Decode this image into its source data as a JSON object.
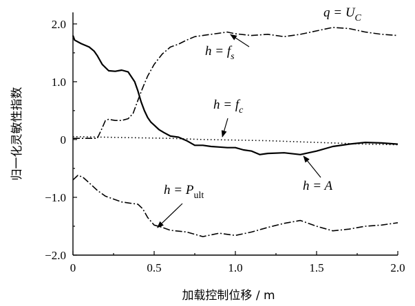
{
  "chart_data": {
    "type": "line",
    "title": "",
    "xlabel": "加载控制位移 / m",
    "ylabel": "归一化灵敏性指数",
    "xlim": [
      0,
      2.0
    ],
    "ylim": [
      -2.0,
      2.2
    ],
    "xticks": [
      "0",
      "0.5",
      "1.0",
      "1.5",
      "2.0"
    ],
    "yticks": [
      "2.0",
      "1.0",
      "0",
      "−1.0",
      "−2.0"
    ],
    "grid": false,
    "legend": "none",
    "series": [
      {
        "id": "A",
        "style": "solid",
        "x": [
          0.0,
          0.01,
          0.05,
          0.1,
          0.13,
          0.15,
          0.18,
          0.22,
          0.26,
          0.3,
          0.34,
          0.38,
          0.4,
          0.42,
          0.44,
          0.46,
          0.48,
          0.5,
          0.53,
          0.56,
          0.6,
          0.65,
          0.7,
          0.75,
          0.8,
          0.85,
          0.9,
          0.95,
          1.0,
          1.05,
          1.1,
          1.15,
          1.2,
          1.3,
          1.4,
          1.5,
          1.6,
          1.7,
          1.8,
          1.9,
          2.0
        ],
        "y": [
          1.8,
          1.72,
          1.66,
          1.6,
          1.53,
          1.45,
          1.3,
          1.19,
          1.18,
          1.2,
          1.17,
          1.0,
          0.84,
          0.65,
          0.5,
          0.38,
          0.3,
          0.25,
          0.17,
          0.12,
          0.06,
          0.04,
          -0.02,
          -0.1,
          -0.1,
          -0.12,
          -0.13,
          -0.14,
          -0.14,
          -0.18,
          -0.2,
          -0.26,
          -0.24,
          -0.23,
          -0.26,
          -0.2,
          -0.12,
          -0.08,
          -0.05,
          -0.06,
          -0.08
        ]
      },
      {
        "id": "fs",
        "style": "dash-dot",
        "x": [
          0.0,
          0.1,
          0.15,
          0.18,
          0.2,
          0.22,
          0.26,
          0.3,
          0.34,
          0.37,
          0.4,
          0.43,
          0.46,
          0.5,
          0.55,
          0.6,
          0.65,
          0.7,
          0.75,
          0.8,
          0.85,
          0.9,
          0.95,
          1.0,
          1.1,
          1.2,
          1.3,
          1.4,
          1.5,
          1.6,
          1.7,
          1.8,
          1.9,
          2.0
        ],
        "y": [
          0.02,
          0.02,
          0.02,
          0.2,
          0.33,
          0.35,
          0.33,
          0.33,
          0.36,
          0.45,
          0.68,
          0.9,
          1.1,
          1.3,
          1.48,
          1.6,
          1.65,
          1.72,
          1.78,
          1.8,
          1.82,
          1.84,
          1.86,
          1.83,
          1.8,
          1.82,
          1.78,
          1.82,
          1.88,
          1.94,
          1.92,
          1.86,
          1.82,
          1.8
        ]
      },
      {
        "id": "fc",
        "style": "dotted",
        "x": [
          0.0,
          0.2,
          0.4,
          0.6,
          0.8,
          1.0,
          1.2,
          1.4,
          1.6,
          1.8,
          2.0
        ],
        "y": [
          0.05,
          0.04,
          0.03,
          0.02,
          0.0,
          -0.01,
          -0.02,
          -0.04,
          -0.06,
          -0.08,
          -0.09
        ]
      },
      {
        "id": "Pult",
        "style": "dash-dot",
        "x": [
          0.0,
          0.03,
          0.06,
          0.1,
          0.15,
          0.2,
          0.25,
          0.3,
          0.35,
          0.4,
          0.43,
          0.46,
          0.5,
          0.55,
          0.6,
          0.7,
          0.8,
          0.9,
          1.0,
          1.1,
          1.2,
          1.3,
          1.4,
          1.5,
          1.6,
          1.7,
          1.8,
          1.9,
          2.0
        ],
        "y": [
          -0.7,
          -0.62,
          -0.65,
          -0.75,
          -0.88,
          -0.98,
          -1.03,
          -1.08,
          -1.1,
          -1.12,
          -1.2,
          -1.35,
          -1.48,
          -1.52,
          -1.57,
          -1.6,
          -1.68,
          -1.62,
          -1.66,
          -1.6,
          -1.52,
          -1.45,
          -1.4,
          -1.5,
          -1.58,
          -1.55,
          -1.5,
          -1.48,
          -1.44
        ]
      }
    ],
    "annotations": {
      "q": {
        "text": "q = U",
        "sub": "C"
      },
      "fs": {
        "text": "h = f",
        "sub": "s"
      },
      "fc": {
        "text": "h = f",
        "sub": "c"
      },
      "Pult": {
        "text": "h = P",
        "sub": "ult"
      },
      "A": {
        "text": "h = A",
        "sub": ""
      }
    }
  }
}
